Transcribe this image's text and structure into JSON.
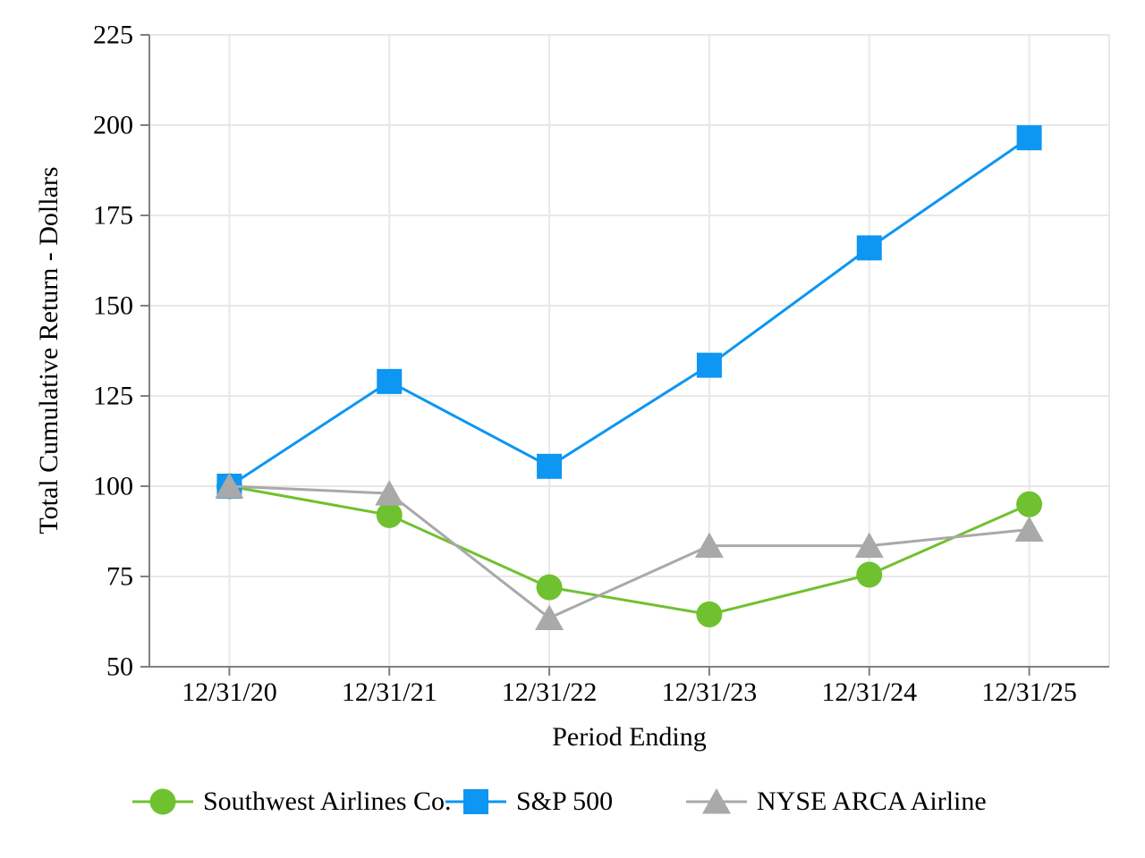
{
  "chart_data": {
    "type": "line",
    "title": "",
    "xlabel": "Period Ending",
    "ylabel": "Total Cumulative Return - Dollars",
    "categories": [
      "12/31/20",
      "12/31/21",
      "12/31/22",
      "12/31/23",
      "12/31/24",
      "12/31/25"
    ],
    "y_ticks": [
      50,
      75,
      100,
      125,
      150,
      175,
      200,
      225
    ],
    "ylim": [
      50,
      225
    ],
    "grid": true,
    "legend_position": "bottom",
    "series": [
      {
        "name": "Southwest Airlines Co.",
        "marker": "circle-icon",
        "color": "#70C12F",
        "values": [
          100,
          92,
          72,
          64.5,
          75.5,
          95
        ]
      },
      {
        "name": "S&P 500",
        "marker": "square-icon",
        "color": "#0D96F2",
        "values": [
          100,
          129,
          105.5,
          133.5,
          166,
          196.5
        ]
      },
      {
        "name": "NYSE ARCA Airline",
        "marker": "triangle-icon",
        "color": "#A9A9A9",
        "values": [
          100,
          98,
          63.5,
          83.5,
          83.5,
          88
        ]
      }
    ],
    "axis_color": "#808080",
    "grid_color": "#E8E8E8",
    "text_color": "#000000"
  }
}
